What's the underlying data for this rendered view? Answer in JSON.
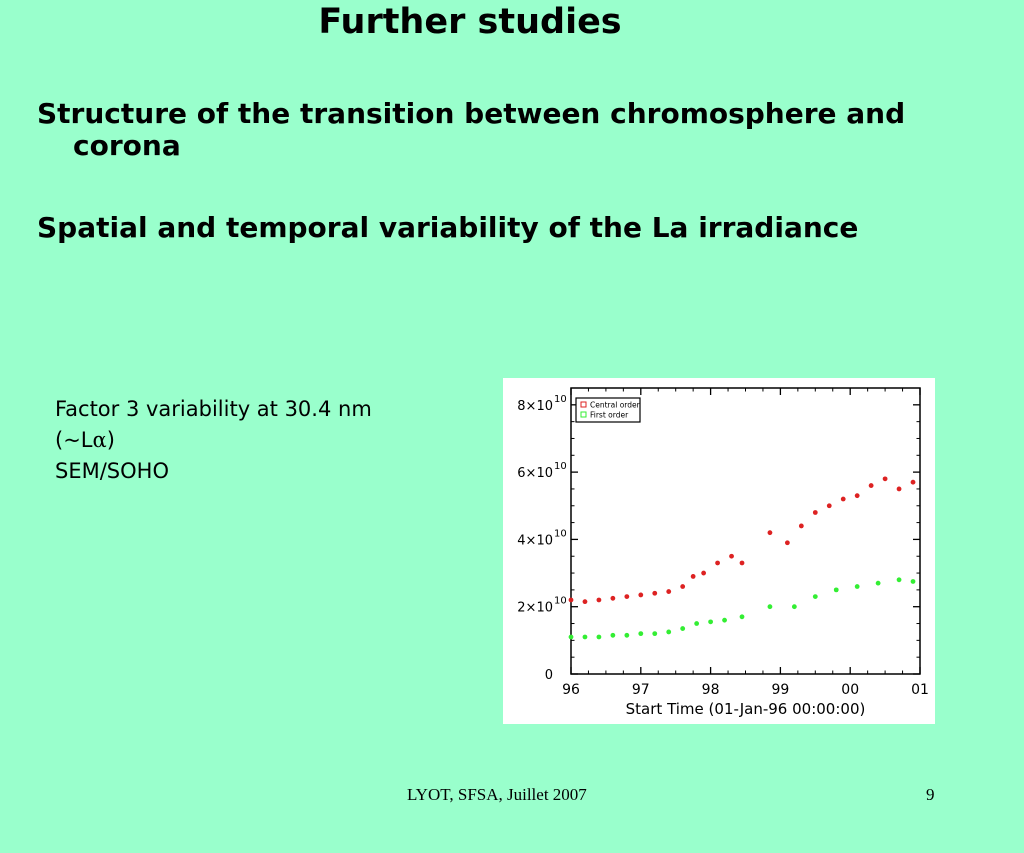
{
  "slide": {
    "title": "Further studies",
    "bullets": [
      "Structure of the transition between chromosphere and corona",
      "Spatial and temporal variability of the La irradiance"
    ],
    "note": {
      "line1": "Factor 3 variability at 30.4 nm",
      "line2_open": "(~L",
      "line2_greek": "α",
      "line2_close": ")",
      "line3": "SEM/SOHO"
    },
    "footer_text": "LYOT, SFSA, Juillet 2007",
    "page_number": "9"
  },
  "chart_data": {
    "type": "scatter",
    "xlabel": "Start Time (01-Jan-96 00:00:00)",
    "ylabel": "",
    "xlim": [
      1996,
      2001
    ],
    "ylim": [
      0,
      85000000000.0
    ],
    "x_ticks": [
      {
        "value": 1996,
        "label": "96"
      },
      {
        "value": 1997,
        "label": "97"
      },
      {
        "value": 1998,
        "label": "98"
      },
      {
        "value": 1999,
        "label": "99"
      },
      {
        "value": 2000,
        "label": "00"
      },
      {
        "value": 2001,
        "label": "01"
      }
    ],
    "y_ticks": [
      {
        "value": 0,
        "mant": "0",
        "exp": ""
      },
      {
        "value": 20000000000.0,
        "mant": "2×10",
        "exp": "10"
      },
      {
        "value": 40000000000.0,
        "mant": "4×10",
        "exp": "10"
      },
      {
        "value": 60000000000.0,
        "mant": "6×10",
        "exp": "10"
      },
      {
        "value": 80000000000.0,
        "mant": "8×10",
        "exp": "10"
      }
    ],
    "legend_position": "top-left",
    "series": [
      {
        "name": "Central order",
        "color": "#dd2222",
        "points": [
          [
            1996.0,
            22000000000.0
          ],
          [
            1996.2,
            21500000000.0
          ],
          [
            1996.4,
            22000000000.0
          ],
          [
            1996.6,
            22500000000.0
          ],
          [
            1996.8,
            23000000000.0
          ],
          [
            1997.0,
            23500000000.0
          ],
          [
            1997.2,
            24000000000.0
          ],
          [
            1997.4,
            24500000000.0
          ],
          [
            1997.6,
            26000000000.0
          ],
          [
            1997.75,
            29000000000.0
          ],
          [
            1997.9,
            30000000000.0
          ],
          [
            1998.1,
            33000000000.0
          ],
          [
            1998.3,
            35000000000.0
          ],
          [
            1998.45,
            33000000000.0
          ],
          [
            1998.85,
            42000000000.0
          ],
          [
            1999.1,
            39000000000.0
          ],
          [
            1999.3,
            44000000000.0
          ],
          [
            1999.5,
            48000000000.0
          ],
          [
            1999.7,
            50000000000.0
          ],
          [
            1999.9,
            52000000000.0
          ],
          [
            2000.1,
            53000000000.0
          ],
          [
            2000.3,
            56000000000.0
          ],
          [
            2000.5,
            58000000000.0
          ],
          [
            2000.7,
            55000000000.0
          ],
          [
            2000.9,
            57000000000.0
          ]
        ]
      },
      {
        "name": "First order",
        "color": "#33ee33",
        "points": [
          [
            1996.0,
            11000000000.0
          ],
          [
            1996.2,
            11000000000.0
          ],
          [
            1996.4,
            11000000000.0
          ],
          [
            1996.6,
            11500000000.0
          ],
          [
            1996.8,
            11500000000.0
          ],
          [
            1997.0,
            12000000000.0
          ],
          [
            1997.2,
            12000000000.0
          ],
          [
            1997.4,
            12500000000.0
          ],
          [
            1997.6,
            13500000000.0
          ],
          [
            1997.8,
            15000000000.0
          ],
          [
            1998.0,
            15500000000.0
          ],
          [
            1998.2,
            16000000000.0
          ],
          [
            1998.45,
            17000000000.0
          ],
          [
            1998.85,
            20000000000.0
          ],
          [
            1999.2,
            20000000000.0
          ],
          [
            1999.5,
            23000000000.0
          ],
          [
            1999.8,
            25000000000.0
          ],
          [
            2000.1,
            26000000000.0
          ],
          [
            2000.4,
            27000000000.0
          ],
          [
            2000.7,
            28000000000.0
          ],
          [
            2000.9,
            27500000000.0
          ]
        ]
      }
    ]
  }
}
